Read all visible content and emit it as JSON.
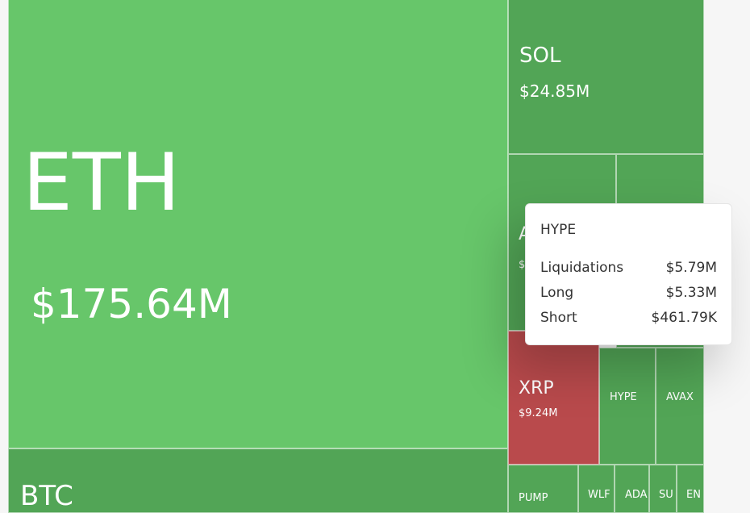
{
  "tiles": {
    "eth": {
      "label": "ETH",
      "value": "$175.64M"
    },
    "btc": {
      "label": "BTC"
    },
    "sol": {
      "label": "SOL",
      "value": "$24.85M"
    },
    "xrp": {
      "label": "XRP",
      "value": "$9.24M"
    },
    "hype": {
      "label": "HYPE"
    },
    "avax": {
      "label": "AVAX"
    },
    "pump": {
      "label": "PUMP"
    },
    "wlf": {
      "label": "WLF"
    },
    "ada": {
      "label": "ADA"
    },
    "su": {
      "label": "SU"
    },
    "en": {
      "label": "EN"
    },
    "partial": {
      "label": "A",
      "value": "$"
    }
  },
  "tooltip": {
    "title": "HYPE",
    "rows": [
      {
        "label": "Liquidations",
        "value": "$5.79M"
      },
      {
        "label": "Long",
        "value": "$5.33M"
      },
      {
        "label": "Short",
        "value": "$461.79K"
      }
    ]
  },
  "colors": {
    "eth": "#67c66a",
    "green": "#52a556",
    "red": "#b94a4c",
    "background": "#f6f6f6"
  }
}
